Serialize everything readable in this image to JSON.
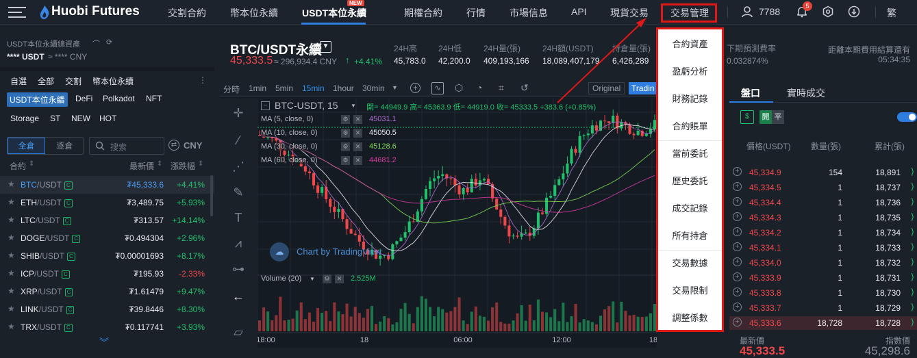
{
  "nav": {
    "logo": "Huobi Futures",
    "items": [
      "交割合約",
      "幣本位永續",
      "USDT本位永續",
      "期權合約",
      "行情",
      "市場信息",
      "API",
      "現貨交易",
      "交易管理"
    ],
    "new_badge": "NEW",
    "user_id": "7788",
    "notification_count": "5",
    "language": "繁"
  },
  "left": {
    "asset_title": "USDT本位永續總資產",
    "asset_usdt": "**** USDT",
    "asset_cny": "≈ **** CNY",
    "categories": [
      "自選",
      "全部",
      "交割",
      "幣本位永續"
    ],
    "chips_row1": [
      "USDT本位永續",
      "DeFi",
      "Polkadot",
      "NFT"
    ],
    "chips_row2": [
      "Storage",
      "ST",
      "NEW",
      "HOT"
    ],
    "tab_all": "全倉",
    "tab_isolated": "逐倉",
    "search_placeholder": "搜索",
    "currency": "CNY",
    "col_contract": "合約",
    "col_price": "最新價",
    "col_change": "漲跌幅",
    "markets": [
      {
        "base": "BTC",
        "quote": "/USDT",
        "badge": "C",
        "price": "₮45,333.6",
        "change": "+4.41%",
        "dir": "up"
      },
      {
        "base": "ETH",
        "quote": "/USDT",
        "badge": "C",
        "price": "₮3,489.75",
        "change": "+5.93%",
        "dir": "up"
      },
      {
        "base": "LTC",
        "quote": "/USDT",
        "badge": "C",
        "price": "₮313.57",
        "change": "+14.14%",
        "dir": "up"
      },
      {
        "base": "DOGE",
        "quote": "/USDT",
        "badge": "C",
        "price": "₮0.494304",
        "change": "+2.96%",
        "dir": "up"
      },
      {
        "base": "SHIB",
        "quote": "/USDT",
        "badge": "C",
        "price": "₮0.00001693",
        "change": "+8.17%",
        "dir": "up"
      },
      {
        "base": "ICP",
        "quote": "/USDT",
        "badge": "C",
        "price": "₮195.93",
        "change": "-2.33%",
        "dir": "down"
      },
      {
        "base": "XRP",
        "quote": "/USDT",
        "badge": "C",
        "price": "₮1.61479",
        "change": "+9.47%",
        "dir": "up"
      },
      {
        "base": "LINK",
        "quote": "/USDT",
        "badge": "C",
        "price": "₮39.8446",
        "change": "+8.30%",
        "dir": "up"
      },
      {
        "base": "TRX",
        "quote": "/USDT",
        "badge": "C",
        "price": "₮0.117741",
        "change": "+3.93%",
        "dir": "up"
      }
    ]
  },
  "ticker": {
    "pair": "BTC/USDT永續",
    "last_price": "45,333.5",
    "cny_price": "≈ 296,934.4 CNY",
    "change": "+4.41%",
    "stats": [
      {
        "label": "24H高",
        "value": "45,783.0"
      },
      {
        "label": "24H低",
        "value": "42,200.0"
      },
      {
        "label": "24H量(張)",
        "value": "409,193,166"
      },
      {
        "label": "24H額(USDT)",
        "value": "18,089,407,179"
      },
      {
        "label": "持倉量(張)",
        "value": "6,426,289"
      },
      {
        "label": "下期預測費率",
        "value": "0.032874%"
      }
    ],
    "settle_label": "距離本期費用結算還有",
    "settle_time": "05:34:35"
  },
  "chart": {
    "timeframes": [
      "分時",
      "1min",
      "5min",
      "15min",
      "1hour",
      "30min"
    ],
    "active_tf": "15min",
    "view_original": "Original",
    "view_tv": "Tradin",
    "symbol_line": "BTC-USDT, 15",
    "ohlc": "開= 44949.9 高= 45363.9 低= 44919.0 收= 45333.5 +383.6 (+0.85%)",
    "ma_labels": [
      "MA (5, close, 0)",
      "MA (10, close, 0)",
      "MA (30, close, 0)",
      "MA (60, close, 0)"
    ],
    "ma_values": [
      "45031.1",
      "45050.5",
      "45128.6",
      "44681.2"
    ],
    "ma_colors": [
      "#b06fd6",
      "#e6e9ee",
      "#7ed957",
      "#d63aa0"
    ],
    "watermark": "Chart by TradingView",
    "volume_label": "Volume (20)",
    "volume_value": "2.525M",
    "x_ticks": [
      "18:00",
      "18",
      "06:00",
      "12:00",
      "18"
    ]
  },
  "dropdown": {
    "items": [
      "合約資產",
      "盈虧分析",
      "財務記錄",
      "合約賬單",
      "當前委託",
      "歷史委託",
      "成交記錄",
      "所有持倉",
      "交易數據",
      "交易限制",
      "調整係數"
    ]
  },
  "orderbook": {
    "tab_book": "盤口",
    "tab_trades": "實時成交",
    "btn_open": "開",
    "btn_close": "平",
    "col_price": "價格(USDT)",
    "col_amount": "數量(張)",
    "col_total": "累計(張)",
    "asks": [
      {
        "price": "45,334.9",
        "amount": "154",
        "total": "18,891"
      },
      {
        "price": "45,334.5",
        "amount": "1",
        "total": "18,737"
      },
      {
        "price": "45,334.4",
        "amount": "1",
        "total": "18,736"
      },
      {
        "price": "45,334.3",
        "amount": "1",
        "total": "18,735"
      },
      {
        "price": "45,334.2",
        "amount": "1",
        "total": "18,734"
      },
      {
        "price": "45,334.1",
        "amount": "1",
        "total": "18,733"
      },
      {
        "price": "45,334.0",
        "amount": "1",
        "total": "18,732"
      },
      {
        "price": "45,333.9",
        "amount": "1",
        "total": "18,731"
      },
      {
        "price": "45,333.8",
        "amount": "1",
        "total": "18,730"
      },
      {
        "price": "45,333.7",
        "amount": "1",
        "total": "18,729"
      },
      {
        "price": "45,333.6",
        "amount": "18,728",
        "total": "18,728"
      }
    ],
    "last_label": "最新價",
    "index_label": "指數價",
    "last_price": "45,333.5",
    "index_price": "45,298.6"
  },
  "colors": {
    "up": "#22c06d",
    "down": "#f0474b",
    "accent": "#2f7de1",
    "annotation": "#e01818"
  }
}
